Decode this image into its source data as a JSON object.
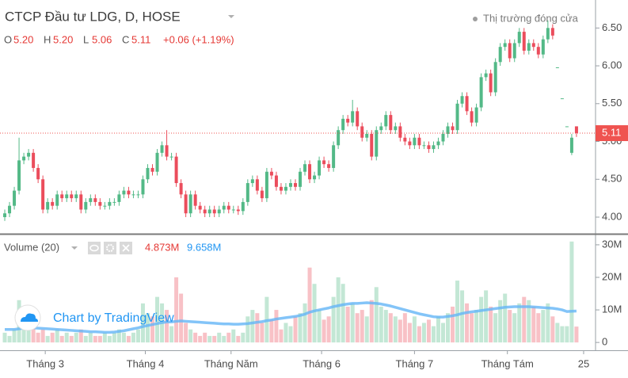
{
  "header": {
    "title": "CTCP Đầu tư LDG, D, HOSE",
    "market_status": "Thị trường đóng cửa",
    "ohlc_labels": [
      "O",
      "H",
      "L",
      "C"
    ],
    "ohlc_values": [
      "5.20",
      "5.20",
      "5.06",
      "5.11"
    ],
    "change": "+0.06 (+1.19%)"
  },
  "watermark": "Chart by TradingView",
  "chart_data": [
    {
      "type": "candlestick",
      "up_color": "#53b987",
      "down_color": "#eb4d5c",
      "last_line_color": "#ef5350",
      "x": [
        0,
        1,
        2,
        3,
        4,
        5,
        6,
        7,
        8,
        9,
        10,
        11,
        12,
        13,
        14,
        15,
        16,
        17,
        18,
        19,
        20,
        21,
        22,
        23,
        24,
        25,
        26,
        27,
        28,
        29,
        30,
        31,
        32,
        33,
        34,
        35,
        36,
        37,
        38,
        39,
        40,
        41,
        42,
        43,
        44,
        45,
        46,
        47,
        48,
        49,
        50,
        51,
        52,
        53,
        54,
        55,
        56,
        57,
        58,
        59,
        60,
        61,
        62,
        63,
        64,
        65,
        66,
        67,
        68,
        69,
        70,
        71,
        72,
        73,
        74,
        75,
        76,
        77,
        78,
        79,
        80,
        81,
        82,
        83,
        84,
        85,
        86,
        87,
        88,
        89,
        90,
        91,
        92,
        93,
        94,
        95,
        96,
        97,
        98,
        99,
        100,
        101,
        102,
        103,
        104,
        105,
        106,
        107,
        108,
        109,
        110,
        111,
        112,
        113,
        114,
        115,
        116,
        117,
        118,
        119,
        120
      ],
      "open": [
        4.0,
        4.05,
        4.15,
        4.35,
        4.75,
        4.8,
        4.85,
        4.65,
        4.5,
        4.1,
        4.2,
        4.15,
        4.3,
        4.25,
        4.3,
        4.25,
        4.3,
        4.1,
        4.2,
        4.25,
        4.2,
        4.15,
        4.15,
        4.2,
        4.2,
        4.3,
        4.35,
        4.3,
        4.3,
        4.3,
        4.5,
        4.65,
        4.6,
        4.85,
        4.95,
        4.8,
        4.8,
        4.45,
        4.3,
        4.05,
        4.3,
        4.15,
        4.1,
        4.05,
        4.1,
        4.05,
        4.1,
        4.15,
        4.1,
        4.1,
        4.08,
        4.2,
        4.45,
        4.5,
        4.35,
        4.25,
        4.6,
        4.55,
        4.4,
        4.35,
        4.4,
        4.45,
        4.4,
        4.6,
        4.7,
        4.5,
        4.55,
        4.75,
        4.7,
        4.65,
        4.95,
        5.15,
        5.3,
        5.25,
        5.4,
        5.2,
        5.05,
        5.1,
        4.8,
        5.15,
        5.2,
        5.35,
        5.15,
        5.2,
        5.05,
        5.0,
        4.95,
        5.05,
        4.95,
        4.95,
        4.9,
        4.95,
        5.0,
        5.1,
        5.2,
        5.15,
        5.5,
        5.6,
        5.4,
        5.25,
        5.45,
        5.85,
        5.9,
        5.65,
        6.05,
        6.25,
        6.3,
        6.1,
        6.3,
        6.45,
        6.2,
        6.3,
        6.25,
        6.15,
        6.35,
        6.5,
        5.98,
        5.57,
        5.2,
        4.85,
        5.2
      ],
      "high": [
        4.1,
        4.2,
        4.4,
        5.05,
        4.85,
        4.9,
        4.9,
        4.7,
        4.55,
        4.25,
        4.25,
        4.35,
        4.35,
        4.35,
        4.35,
        4.35,
        4.35,
        4.25,
        4.3,
        4.3,
        4.25,
        4.2,
        4.25,
        4.25,
        4.35,
        4.4,
        4.4,
        4.35,
        4.35,
        4.55,
        4.7,
        4.7,
        4.9,
        5.0,
        5.15,
        4.85,
        4.85,
        4.5,
        4.35,
        4.35,
        4.35,
        4.2,
        4.15,
        4.15,
        4.15,
        4.15,
        4.2,
        4.2,
        4.15,
        4.15,
        4.25,
        4.5,
        4.55,
        4.55,
        4.4,
        4.65,
        4.65,
        4.6,
        4.45,
        4.45,
        4.5,
        4.5,
        4.65,
        4.75,
        4.75,
        4.6,
        4.8,
        4.8,
        4.75,
        5.0,
        5.2,
        5.35,
        5.35,
        5.55,
        5.45,
        5.25,
        5.15,
        5.15,
        5.2,
        5.25,
        5.4,
        5.4,
        5.25,
        5.25,
        5.1,
        5.05,
        5.1,
        5.1,
        5.0,
        5.0,
        5.0,
        5.05,
        5.15,
        5.25,
        5.25,
        5.55,
        5.65,
        5.65,
        5.45,
        5.5,
        5.9,
        5.95,
        5.95,
        6.1,
        6.3,
        6.35,
        6.35,
        6.35,
        6.5,
        6.5,
        6.35,
        6.35,
        6.3,
        6.4,
        6.6,
        6.55,
        5.98,
        5.57,
        5.2,
        5.1,
        5.2
      ],
      "low": [
        3.95,
        4.0,
        4.1,
        4.3,
        4.7,
        4.75,
        4.6,
        4.45,
        4.05,
        4.05,
        4.1,
        4.1,
        4.2,
        4.2,
        4.2,
        4.2,
        4.05,
        4.05,
        4.15,
        4.15,
        4.1,
        4.1,
        4.1,
        4.15,
        4.15,
        4.25,
        4.25,
        4.25,
        4.25,
        4.25,
        4.45,
        4.55,
        4.55,
        4.8,
        4.75,
        4.75,
        4.4,
        4.25,
        4.0,
        4.0,
        4.1,
        4.05,
        4.0,
        4.0,
        4.0,
        4.0,
        4.05,
        4.05,
        4.05,
        4.03,
        4.03,
        4.15,
        4.4,
        4.3,
        4.2,
        4.2,
        4.5,
        4.35,
        4.3,
        4.3,
        4.35,
        4.35,
        4.35,
        4.55,
        4.45,
        4.45,
        4.5,
        4.65,
        4.6,
        4.6,
        4.9,
        5.1,
        5.2,
        5.2,
        5.15,
        5.0,
        5.0,
        4.75,
        4.75,
        5.1,
        5.15,
        5.1,
        5.1,
        5.0,
        4.95,
        4.9,
        4.9,
        4.9,
        4.9,
        4.85,
        4.85,
        4.9,
        4.95,
        5.05,
        5.1,
        5.1,
        5.45,
        5.35,
        5.2,
        5.2,
        5.4,
        5.8,
        5.6,
        5.6,
        6.0,
        6.2,
        6.05,
        6.05,
        6.25,
        6.15,
        6.15,
        6.2,
        6.1,
        6.1,
        6.3,
        6.35,
        5.98,
        5.57,
        5.2,
        4.82,
        5.06
      ],
      "close": [
        4.05,
        4.15,
        4.35,
        4.75,
        4.8,
        4.85,
        4.65,
        4.5,
        4.1,
        4.2,
        4.15,
        4.3,
        4.25,
        4.3,
        4.25,
        4.3,
        4.1,
        4.2,
        4.25,
        4.2,
        4.15,
        4.15,
        4.2,
        4.2,
        4.3,
        4.35,
        4.3,
        4.3,
        4.3,
        4.5,
        4.65,
        4.6,
        4.85,
        4.95,
        4.8,
        4.8,
        4.45,
        4.3,
        4.05,
        4.3,
        4.15,
        4.1,
        4.05,
        4.1,
        4.05,
        4.1,
        4.15,
        4.1,
        4.1,
        4.08,
        4.2,
        4.45,
        4.5,
        4.35,
        4.25,
        4.6,
        4.55,
        4.4,
        4.35,
        4.4,
        4.45,
        4.4,
        4.6,
        4.7,
        4.5,
        4.55,
        4.75,
        4.7,
        4.65,
        4.95,
        5.15,
        5.3,
        5.25,
        5.4,
        5.2,
        5.05,
        5.1,
        4.8,
        5.15,
        5.2,
        5.35,
        5.15,
        5.2,
        5.05,
        5.0,
        4.95,
        5.05,
        4.95,
        4.95,
        4.9,
        4.95,
        5.0,
        5.1,
        5.2,
        5.15,
        5.5,
        5.6,
        5.4,
        5.25,
        5.45,
        5.85,
        5.9,
        5.65,
        6.05,
        6.25,
        6.3,
        6.1,
        6.3,
        6.45,
        6.2,
        6.3,
        6.25,
        6.15,
        6.35,
        6.5,
        6.4,
        5.98,
        5.57,
        5.2,
        5.05,
        5.11
      ],
      "xlim": [
        -1,
        124
      ],
      "xticks": [
        {
          "value": 8.5,
          "label": "Tháng 3"
        },
        {
          "value": 29.5,
          "label": "Tháng 4"
        },
        {
          "value": 47.5,
          "label": "Tháng Năm"
        },
        {
          "value": 66.5,
          "label": "Tháng 6"
        },
        {
          "value": 86,
          "label": "Tháng 7"
        },
        {
          "value": 105.5,
          "label": "Tháng Tám"
        },
        {
          "value": 121.5,
          "label": "25"
        }
      ],
      "ylim": [
        3.78,
        6.87
      ],
      "yticks": [
        {
          "value": 4,
          "label": "4.00"
        },
        {
          "value": 4.5,
          "label": "4.50"
        },
        {
          "value": 5,
          "label": "5.00"
        },
        {
          "value": 5.5,
          "label": "5.50"
        },
        {
          "value": 6,
          "label": "6.00"
        },
        {
          "value": 6.5,
          "label": "6.50"
        }
      ]
    },
    {
      "type": "volume",
      "title": "Volume (20)",
      "last_volume_label": "4.873M",
      "last_ma_label": "9.658M",
      "ma_color": "#64b5f6",
      "values": [
        3,
        2,
        4,
        13,
        7,
        9,
        5,
        3,
        4,
        2,
        3,
        4,
        2,
        3,
        2,
        3,
        4,
        2,
        3,
        2,
        2,
        3,
        2,
        3,
        4,
        3,
        2,
        3,
        4,
        12,
        9,
        8,
        14,
        12,
        10,
        5,
        20,
        15,
        6,
        4,
        3,
        2,
        3,
        2,
        2,
        3,
        2,
        3,
        4,
        2,
        3,
        8,
        10,
        9,
        6,
        14,
        7,
        10,
        4,
        6,
        5,
        8,
        9,
        12,
        23,
        18,
        10,
        7,
        8,
        14,
        20,
        18,
        11,
        12,
        9,
        10,
        8,
        13,
        17,
        11,
        10,
        9,
        8,
        7,
        9,
        6,
        8,
        5,
        6,
        7,
        5,
        8,
        6,
        9,
        11,
        19,
        16,
        12,
        9,
        10,
        14,
        16,
        11,
        9,
        13,
        15,
        10,
        9,
        12,
        14,
        13,
        11,
        9,
        10,
        12,
        8,
        6,
        5,
        5,
        31,
        4.873
      ],
      "ma_values": [
        4,
        4,
        4,
        4.2,
        4.4,
        4.5,
        4.5,
        4.4,
        4.3,
        4.2,
        4.1,
        4,
        3.9,
        3.8,
        3.7,
        3.6,
        3.5,
        3.4,
        3.3,
        3.3,
        3.2,
        3.1,
        3.1,
        3.2,
        3.4,
        3.6,
        3.9,
        4.2,
        4.5,
        4.9,
        5.2,
        5.5,
        5.8,
        6.1,
        6.3,
        6.3,
        6.5,
        6.6,
        6.5,
        6.4,
        6.3,
        6.2,
        6.1,
        6,
        5.9,
        5.8,
        5.7,
        5.7,
        5.6,
        5.6,
        5.7,
        5.8,
        6,
        6.2,
        6.4,
        6.7,
        6.9,
        7.2,
        7.4,
        7.6,
        7.8,
        8,
        8.3,
        8.7,
        9.3,
        9.7,
        10,
        10.3,
        10.6,
        11,
        11.3,
        11.6,
        11.8,
        12,
        12,
        12.1,
        12.2,
        12.1,
        12,
        11.8,
        11.5,
        11.2,
        10.8,
        10.4,
        10,
        9.6,
        9.2,
        8.8,
        8.5,
        8.2,
        7.9,
        7.8,
        7.8,
        8,
        8.2,
        8.5,
        8.9,
        9.2,
        9.4,
        9.6,
        9.8,
        10,
        10.2,
        10.4,
        10.6,
        10.8,
        10.9,
        11,
        11,
        11,
        11,
        10.9,
        10.8,
        10.7,
        10.6,
        10.5,
        10.3,
        10,
        9.5,
        9.6,
        9.658
      ],
      "ylim": [
        -2.4,
        32.9
      ],
      "yticks": [
        0,
        {
          "value": 10,
          "label": "10M"
        },
        {
          "value": 20,
          "label": "20M"
        },
        {
          "value": 30,
          "label": "30M"
        }
      ]
    }
  ]
}
